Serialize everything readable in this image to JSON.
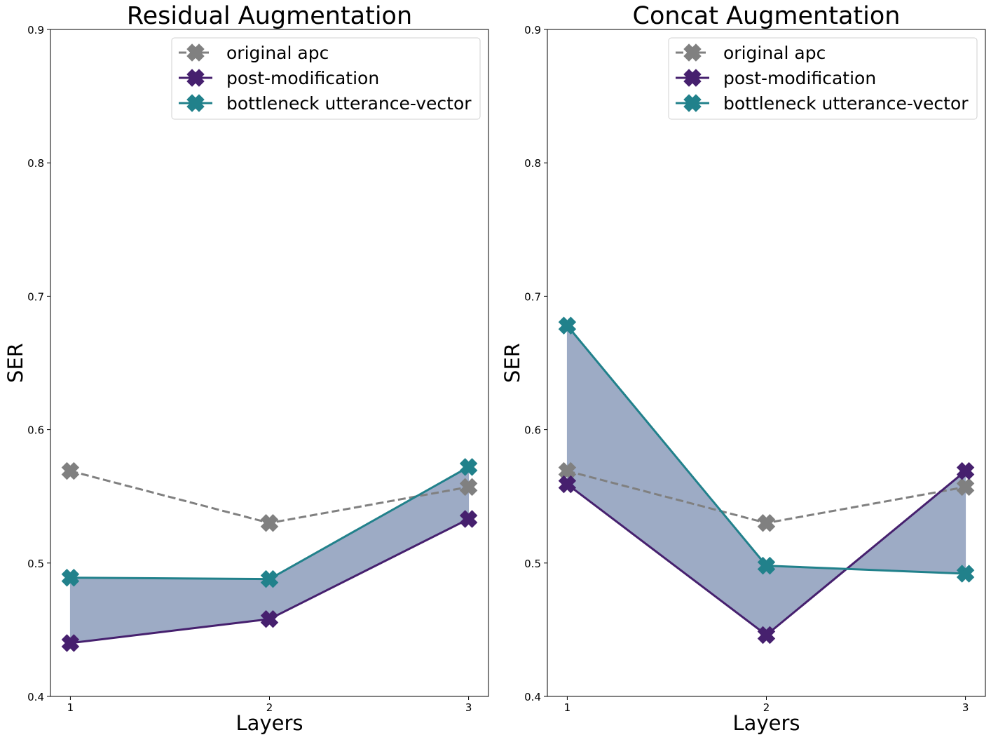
{
  "chart_data": [
    {
      "type": "line",
      "title": "Residual Augmentation",
      "xlabel": "Layers",
      "ylabel": "SER",
      "x": [
        1,
        2,
        3
      ],
      "xticks": [
        "1",
        "2",
        "3"
      ],
      "ylim": [
        0.4,
        0.9
      ],
      "yticks": [
        "0.4",
        "0.5",
        "0.6",
        "0.7",
        "0.8",
        "0.9"
      ],
      "grid": false,
      "legend": "top-right",
      "fill_between": [
        "post-modification",
        "bottleneck utterance-vector"
      ],
      "series": [
        {
          "name": "original apc",
          "values": [
            0.569,
            0.53,
            0.557
          ],
          "color": "#808080",
          "linestyle": "dashed"
        },
        {
          "name": "post-modification",
          "values": [
            0.44,
            0.458,
            0.533
          ],
          "color": "#46206e",
          "linestyle": "solid"
        },
        {
          "name": "bottleneck utterance-vector",
          "values": [
            0.489,
            0.488,
            0.572
          ],
          "color": "#21818b",
          "linestyle": "solid"
        }
      ]
    },
    {
      "type": "line",
      "title": "Concat Augmentation",
      "xlabel": "Layers",
      "ylabel": "SER",
      "x": [
        1,
        2,
        3
      ],
      "xticks": [
        "1",
        "2",
        "3"
      ],
      "ylim": [
        0.4,
        0.9
      ],
      "yticks": [
        "0.4",
        "0.5",
        "0.6",
        "0.7",
        "0.8",
        "0.9"
      ],
      "grid": false,
      "legend": "top-right",
      "fill_between": [
        "post-modification",
        "bottleneck utterance-vector"
      ],
      "series": [
        {
          "name": "original apc",
          "values": [
            0.569,
            0.53,
            0.557
          ],
          "color": "#808080",
          "linestyle": "dashed"
        },
        {
          "name": "post-modification",
          "values": [
            0.559,
            0.446,
            0.569
          ],
          "color": "#46206e",
          "linestyle": "solid"
        },
        {
          "name": "bottleneck utterance-vector",
          "values": [
            0.678,
            0.498,
            0.492
          ],
          "color": "#21818b",
          "linestyle": "solid"
        }
      ]
    }
  ],
  "fill_color": "#9dabc5"
}
